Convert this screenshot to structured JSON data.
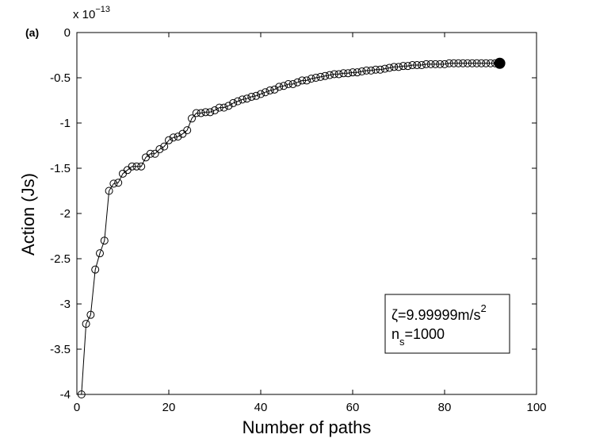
{
  "panel_label": "(a)",
  "chart_data": {
    "type": "line",
    "xlabel": "Number of paths",
    "ylabel": "Action (Js)",
    "xlim": [
      0,
      100
    ],
    "ylim": [
      -4,
      0
    ],
    "x_ticks": [
      "0",
      "20",
      "40",
      "60",
      "80",
      "100"
    ],
    "y_ticks": [
      "0",
      "-0.5",
      "-1",
      "-1.5",
      "-2",
      "-2.5",
      "-3",
      "-3.5",
      "-4"
    ],
    "y_multiplier": {
      "base": "x 10",
      "exponent": "−13"
    },
    "grid": false,
    "marker": "open-circle",
    "final_point": {
      "x": 92,
      "y": -0.34,
      "marker": "filled-circle"
    },
    "annotation": {
      "line1": {
        "symbol": "ζ",
        "text": "=9.99999m/s",
        "sup": "2"
      },
      "line2": {
        "base": "n",
        "sub": "s",
        "text": "=1000"
      }
    },
    "series": [
      {
        "x": [
          1,
          2,
          3,
          4,
          5,
          6,
          7,
          8,
          9,
          10,
          11,
          12,
          13,
          14,
          15,
          16,
          17,
          18,
          19,
          20,
          21,
          22,
          23,
          24,
          25,
          26,
          27,
          28,
          29,
          30,
          31,
          32,
          33,
          34,
          35,
          36,
          37,
          38,
          39,
          40,
          41,
          42,
          43,
          44,
          45,
          46,
          47,
          48,
          49,
          50,
          51,
          52,
          53,
          54,
          55,
          56,
          57,
          58,
          59,
          60,
          61,
          62,
          63,
          64,
          65,
          66,
          67,
          68,
          69,
          70,
          71,
          72,
          73,
          74,
          75,
          76,
          77,
          78,
          79,
          80,
          81,
          82,
          83,
          84,
          85,
          86,
          87,
          88,
          89,
          90,
          91,
          92
        ],
        "values": [
          -4.0,
          -3.22,
          -3.12,
          -2.62,
          -2.44,
          -2.3,
          -1.75,
          -1.67,
          -1.66,
          -1.56,
          -1.52,
          -1.48,
          -1.48,
          -1.48,
          -1.38,
          -1.34,
          -1.34,
          -1.29,
          -1.26,
          -1.19,
          -1.16,
          -1.15,
          -1.12,
          -1.08,
          -0.95,
          -0.89,
          -0.89,
          -0.88,
          -0.88,
          -0.86,
          -0.83,
          -0.83,
          -0.81,
          -0.78,
          -0.76,
          -0.74,
          -0.73,
          -0.71,
          -0.7,
          -0.68,
          -0.66,
          -0.64,
          -0.63,
          -0.6,
          -0.59,
          -0.57,
          -0.57,
          -0.55,
          -0.53,
          -0.53,
          -0.51,
          -0.5,
          -0.49,
          -0.48,
          -0.47,
          -0.46,
          -0.46,
          -0.45,
          -0.45,
          -0.44,
          -0.44,
          -0.43,
          -0.42,
          -0.42,
          -0.41,
          -0.41,
          -0.4,
          -0.39,
          -0.38,
          -0.38,
          -0.37,
          -0.37,
          -0.36,
          -0.36,
          -0.36,
          -0.35,
          -0.35,
          -0.35,
          -0.35,
          -0.35,
          -0.34,
          -0.34,
          -0.34,
          -0.34,
          -0.34,
          -0.34,
          -0.34,
          -0.34,
          -0.34,
          -0.34,
          -0.34,
          -0.34
        ]
      }
    ]
  }
}
